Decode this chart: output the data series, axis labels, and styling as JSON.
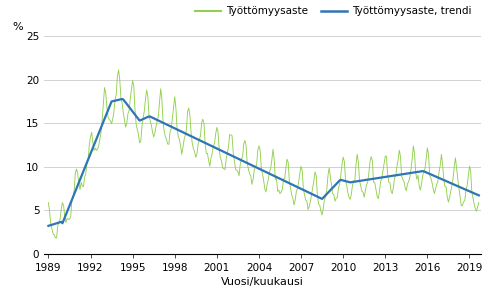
{
  "title": "",
  "ylabel": "%",
  "xlabel": "Vuosi/kuukausi",
  "legend_labels": [
    "Työttömyysaste",
    "Työttömyysaste, trendi"
  ],
  "line1_color": "#92d050",
  "line2_color": "#2e75b6",
  "background_color": "#ffffff",
  "grid_color": "#bfbfbf",
  "ylim": [
    0,
    25
  ],
  "yticks": [
    0,
    5,
    10,
    15,
    20,
    25
  ],
  "xticks": [
    1989,
    1992,
    1995,
    1998,
    2001,
    2004,
    2007,
    2010,
    2013,
    2016,
    2019
  ],
  "figsize": [
    4.91,
    3.02
  ],
  "dpi": 100
}
